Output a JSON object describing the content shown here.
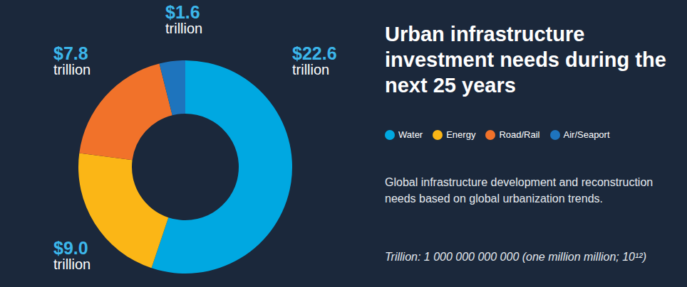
{
  "chart_data": {
    "type": "pie",
    "title": "Urban infrastructure investment needs during the next 25 years",
    "subtitle": "Global infrastructure development and reconstruction needs based on global urbanization trends.",
    "footnote": "Trillion: 1 000 000 000 000 (one million million; 10¹²)",
    "categories": [
      "Water",
      "Energy",
      "Road/Rail",
      "Air/Seaport"
    ],
    "values": [
      22.6,
      9.0,
      7.8,
      1.6
    ],
    "value_labels": [
      "$22.6 trillion",
      "$9.0 trillion",
      "$7.8 trillion",
      "$1.6 trillion"
    ],
    "colors": [
      "#00a8e1",
      "#fbb616",
      "#f1722a",
      "#1e74bd"
    ],
    "data_labels": true,
    "legend": "right"
  }
}
